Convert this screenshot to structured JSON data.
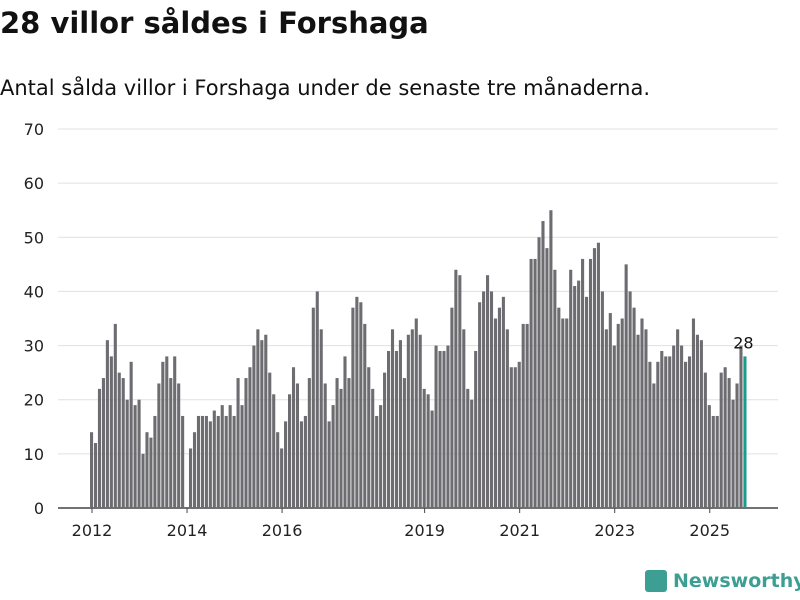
{
  "title": "28 villor såldes i Forshaga",
  "subtitle": "Antal sålda villor i Forshaga under de senaste tre månaderna.",
  "brand": "Newsworthy",
  "colors": {
    "bar": "#6d6c71",
    "highlight": "#1a9b8f",
    "grid": "#e0e0e0"
  },
  "chart_data": {
    "type": "bar",
    "start": "2012-01",
    "ylim": [
      0,
      70
    ],
    "yticks": [
      0,
      10,
      20,
      30,
      40,
      50,
      60,
      70
    ],
    "xticks": [
      {
        "label": "2012",
        "year": 2012
      },
      {
        "label": "2014",
        "year": 2014
      },
      {
        "label": "2016",
        "year": 2016
      },
      {
        "label": "2019",
        "year": 2019
      },
      {
        "label": "2021",
        "year": 2021
      },
      {
        "label": "2023",
        "year": 2023
      },
      {
        "label": "2025",
        "year": 2025
      }
    ],
    "values": [
      14,
      12,
      22,
      24,
      31,
      28,
      34,
      25,
      24,
      20,
      27,
      19,
      20,
      10,
      14,
      13,
      17,
      23,
      27,
      28,
      24,
      28,
      23,
      17,
      0,
      11,
      14,
      17,
      17,
      17,
      16,
      18,
      17,
      19,
      17,
      19,
      17,
      24,
      19,
      24,
      26,
      30,
      33,
      31,
      32,
      25,
      21,
      14,
      11,
      16,
      21,
      26,
      23,
      16,
      17,
      24,
      37,
      40,
      33,
      23,
      16,
      19,
      24,
      22,
      28,
      24,
      37,
      39,
      38,
      34,
      26,
      22,
      17,
      19,
      25,
      29,
      33,
      29,
      31,
      24,
      32,
      33,
      35,
      32,
      22,
      21,
      18,
      30,
      29,
      29,
      30,
      37,
      44,
      43,
      33,
      22,
      20,
      29,
      38,
      40,
      43,
      40,
      35,
      37,
      39,
      33,
      26,
      26,
      27,
      34,
      34,
      46,
      46,
      50,
      53,
      48,
      55,
      44,
      37,
      35,
      35,
      44,
      41,
      42,
      46,
      39,
      46,
      48,
      49,
      40,
      33,
      36,
      30,
      34,
      35,
      45,
      40,
      37,
      32,
      35,
      33,
      27,
      23,
      27,
      29,
      28,
      28,
      30,
      33,
      30,
      27,
      28,
      35,
      32,
      31,
      25,
      19,
      17,
      17,
      25,
      26,
      24,
      20,
      23,
      30,
      28
    ],
    "last_label": "28"
  }
}
